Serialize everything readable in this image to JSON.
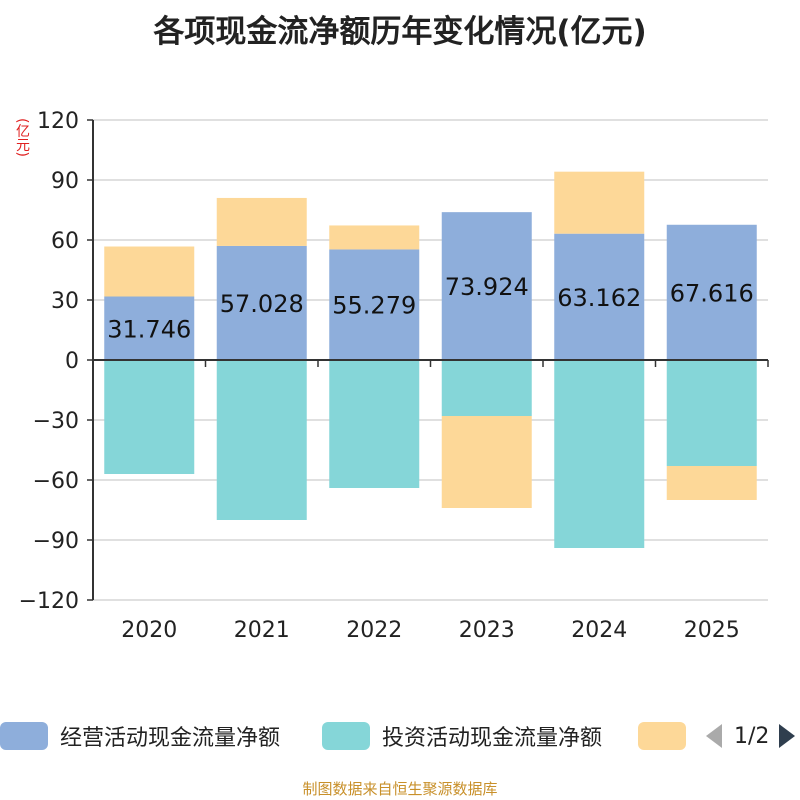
{
  "title": "各项现金流净额历年变化情况(亿元)",
  "unit_label": "(亿元)",
  "source": "制图数据来自恒生聚源数据库",
  "legend": {
    "items": [
      {
        "label": "经营活动现金流量净额",
        "color": "#8eaedb"
      },
      {
        "label": "投资活动现金流量净额",
        "color": "#85d6d8"
      },
      {
        "label": "",
        "color": "#fdd898"
      }
    ],
    "page": "1/2"
  },
  "chart_data": {
    "type": "bar",
    "stacked": true,
    "categories": [
      "2020",
      "2021",
      "2022",
      "2023",
      "2024",
      "2025"
    ],
    "series": [
      {
        "name": "经营活动现金流量净额",
        "color": "#8eaedb",
        "values": [
          31.746,
          57.028,
          55.279,
          73.924,
          63.162,
          67.616
        ],
        "labels": [
          "31.746",
          "57.028",
          "55.279",
          "73.924",
          "63.162",
          "67.616"
        ]
      },
      {
        "name": "投资活动现金流量净额",
        "color": "#85d6d8",
        "values": [
          -57,
          -80,
          -64,
          -28,
          -94,
          -53
        ]
      },
      {
        "name": "",
        "color": "#fdd898",
        "values": [
          25,
          24,
          12,
          -46,
          31,
          -17
        ]
      }
    ],
    "yticks": [
      120,
      90,
      60,
      30,
      0,
      -30,
      -60,
      -90,
      -120
    ],
    "ylim": [
      -120,
      120
    ],
    "grid": true
  }
}
